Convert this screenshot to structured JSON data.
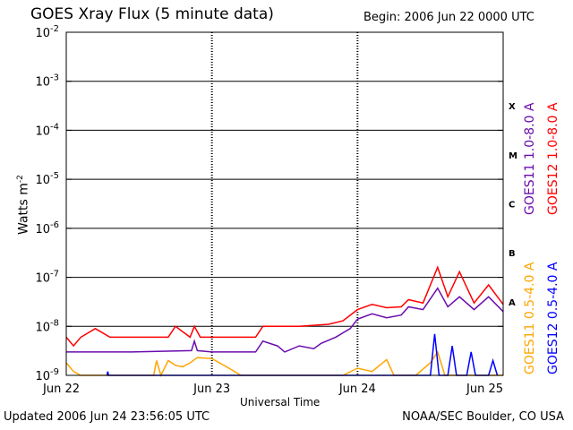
{
  "chart_data": {
    "type": "line",
    "title": "GOES Xray Flux (5 minute data)",
    "begin_label": "Begin:  2006 Jun 22 0000 UTC",
    "xlabel": "Universal Time",
    "ylabel": "Watts m",
    "ylabel_sup": "-2",
    "yscale": "log",
    "ylim": [
      1e-09,
      0.01
    ],
    "y_ticks": [
      {
        "base": "10",
        "exp": "-9"
      },
      {
        "base": "10",
        "exp": "-8"
      },
      {
        "base": "10",
        "exp": "-7"
      },
      {
        "base": "10",
        "exp": "-6"
      },
      {
        "base": "10",
        "exp": "-5"
      },
      {
        "base": "10",
        "exp": "-4"
      },
      {
        "base": "10",
        "exp": "-3"
      },
      {
        "base": "10",
        "exp": "-2"
      }
    ],
    "x_ticks": [
      "Jun 22",
      "Jun 23",
      "Jun 24",
      "Jun 25"
    ],
    "xlim_days": [
      0,
      3
    ],
    "flare_classes": [
      {
        "label": "A",
        "value": 1e-08
      },
      {
        "label": "B",
        "value": 1e-07
      },
      {
        "label": "C",
        "value": 1e-06
      },
      {
        "label": "M",
        "value": 1e-05
      },
      {
        "label": "X",
        "value": 0.0001
      }
    ],
    "series": [
      {
        "name": "GOES11 1.0-8.0 A",
        "color": "#6a0dad",
        "points": [
          [
            0,
            3e-09
          ],
          [
            0.45,
            3e-09
          ],
          [
            0.86,
            3.2e-09
          ],
          [
            0.88,
            5e-09
          ],
          [
            0.9,
            3.2e-09
          ],
          [
            1.0,
            3e-09
          ],
          [
            1.3,
            3e-09
          ],
          [
            1.35,
            5e-09
          ],
          [
            1.45,
            4e-09
          ],
          [
            1.5,
            3e-09
          ],
          [
            1.6,
            4e-09
          ],
          [
            1.7,
            3.5e-09
          ],
          [
            1.75,
            4.5e-09
          ],
          [
            1.85,
            6e-09
          ],
          [
            1.95,
            9e-09
          ],
          [
            2.0,
            1.4e-08
          ],
          [
            2.1,
            1.8e-08
          ],
          [
            2.2,
            1.5e-08
          ],
          [
            2.3,
            1.7e-08
          ],
          [
            2.35,
            2.5e-08
          ],
          [
            2.45,
            2.2e-08
          ],
          [
            2.55,
            6e-08
          ],
          [
            2.62,
            2.5e-08
          ],
          [
            2.7,
            4e-08
          ],
          [
            2.8,
            2.2e-08
          ],
          [
            2.9,
            4e-08
          ],
          [
            3.0,
            2e-08
          ]
        ]
      },
      {
        "name": "GOES12 1.0-8.0 A",
        "color": "#ff0000",
        "points": [
          [
            0,
            6e-09
          ],
          [
            0.05,
            4e-09
          ],
          [
            0.1,
            6e-09
          ],
          [
            0.2,
            9e-09
          ],
          [
            0.3,
            6e-09
          ],
          [
            0.45,
            6e-09
          ],
          [
            0.7,
            6e-09
          ],
          [
            0.75,
            1e-08
          ],
          [
            0.85,
            6e-09
          ],
          [
            0.88,
            1e-08
          ],
          [
            0.92,
            6e-09
          ],
          [
            1.0,
            6e-09
          ],
          [
            1.3,
            6e-09
          ],
          [
            1.35,
            1e-08
          ],
          [
            1.6,
            1e-08
          ],
          [
            1.8,
            1.1e-08
          ],
          [
            1.9,
            1.3e-08
          ],
          [
            2.0,
            2.2e-08
          ],
          [
            2.1,
            2.8e-08
          ],
          [
            2.2,
            2.4e-08
          ],
          [
            2.3,
            2.5e-08
          ],
          [
            2.35,
            3.5e-08
          ],
          [
            2.45,
            3e-08
          ],
          [
            2.55,
            1.6e-07
          ],
          [
            2.62,
            4e-08
          ],
          [
            2.7,
            1.3e-07
          ],
          [
            2.8,
            3e-08
          ],
          [
            2.9,
            7e-08
          ],
          [
            3.0,
            2.8e-08
          ]
        ]
      },
      {
        "name": "GOES11 0.5-4.0 A",
        "color": "#ffa500",
        "points": [
          [
            0,
            1.8e-09
          ],
          [
            0.05,
            1.2e-09
          ],
          [
            0.1,
            1e-09
          ],
          [
            0.6,
            1e-09
          ],
          [
            0.62,
            2e-09
          ],
          [
            0.65,
            1e-09
          ],
          [
            0.7,
            2e-09
          ],
          [
            0.75,
            1.6e-09
          ],
          [
            0.8,
            1.5e-09
          ],
          [
            0.85,
            1.8e-09
          ],
          [
            0.9,
            2.3e-09
          ],
          [
            1.0,
            2.2e-09
          ],
          [
            1.1,
            1.5e-09
          ],
          [
            1.2,
            1e-09
          ],
          [
            1.9,
            1e-09
          ],
          [
            2.0,
            1.4e-09
          ],
          [
            2.1,
            1.2e-09
          ],
          [
            2.2,
            2.1e-09
          ],
          [
            2.25,
            1e-09
          ],
          [
            2.4,
            1e-09
          ],
          [
            2.5,
            1.8e-09
          ],
          [
            2.55,
            3e-09
          ],
          [
            2.6,
            1e-09
          ],
          [
            2.9,
            1e-09
          ],
          [
            3.0,
            1e-09
          ]
        ]
      },
      {
        "name": "GOES12 0.5-4.0 A",
        "color": "#0000ff",
        "points": [
          [
            0.28,
            1e-09
          ],
          [
            0.285,
            1.2e-09
          ],
          [
            0.29,
            1e-09
          ],
          [
            2.5,
            1e-09
          ],
          [
            2.53,
            7e-09
          ],
          [
            2.56,
            1e-09
          ],
          [
            2.62,
            1e-09
          ],
          [
            2.65,
            4e-09
          ],
          [
            2.68,
            1e-09
          ],
          [
            2.75,
            1e-09
          ],
          [
            2.78,
            3e-09
          ],
          [
            2.81,
            1e-09
          ],
          [
            2.9,
            1e-09
          ],
          [
            2.93,
            2e-09
          ],
          [
            2.96,
            1e-09
          ]
        ]
      }
    ],
    "grid": true,
    "legend_placement": "right, rotated"
  },
  "footer": {
    "updated": "Updated 2006 Jun 24 23:56:05 UTC",
    "credit": "NOAA/SEC Boulder, CO USA"
  }
}
